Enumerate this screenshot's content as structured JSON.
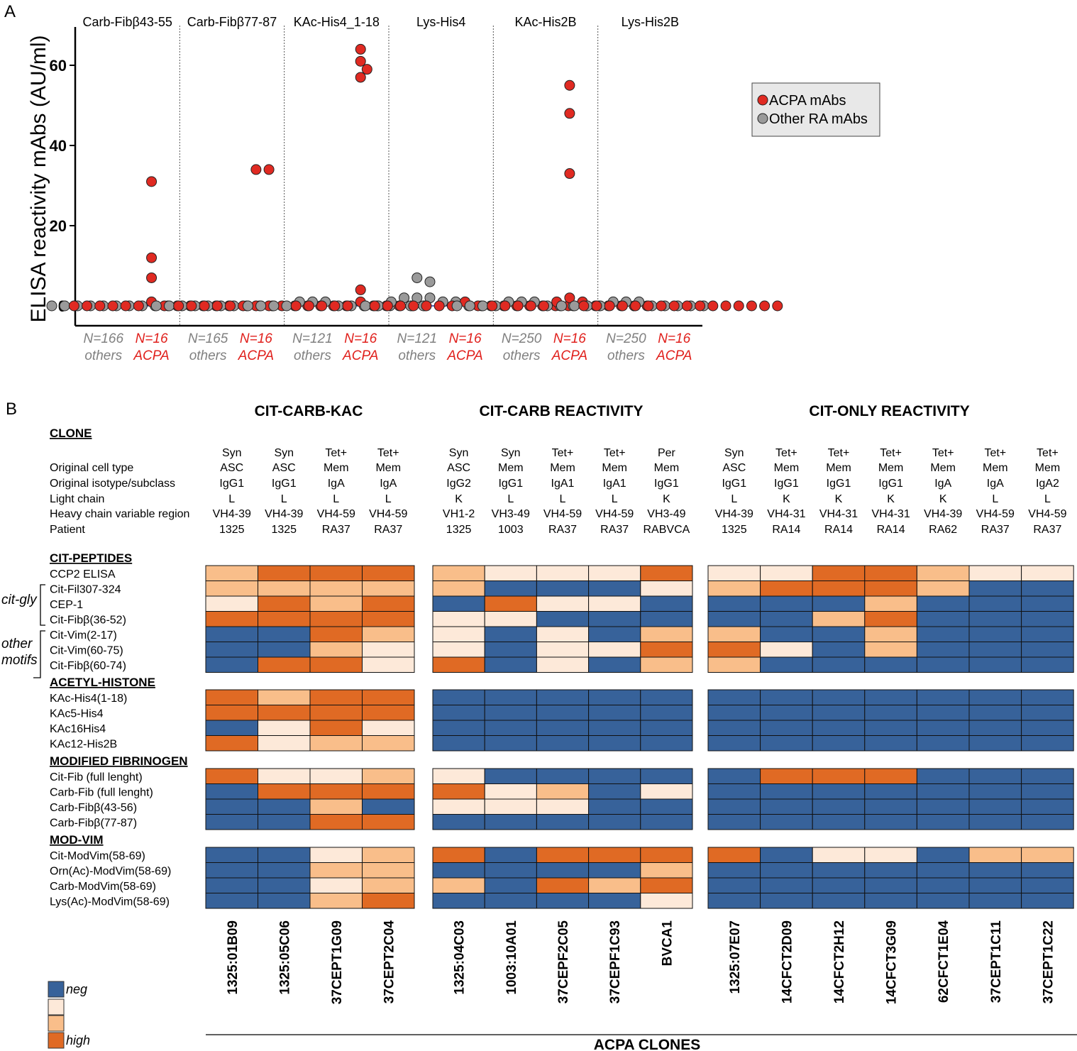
{
  "panel_labels": {
    "a": "A",
    "b": "B"
  },
  "colors": {
    "acpa": "#e02a22",
    "others": "#9a9a9a",
    "baseline": "#2233aa",
    "neg": "#37629a",
    "low": "#fde9d9",
    "mid": "#f9be8a",
    "high": "#e06a24",
    "others_text": "#808080",
    "acpa_text": "#e0201c"
  },
  "chart_data": [
    {
      "type": "scatter",
      "title": "",
      "ylabel": "ELISA reactivity mAbs (AU/ml)",
      "xlabel": "",
      "ylim": [
        -4,
        70
      ],
      "yticks": [
        0,
        20,
        40,
        60
      ],
      "legend": {
        "position": "top-right",
        "entries": [
          "ACPA mAbs",
          "Other RA mAbs"
        ]
      },
      "baseline": 0,
      "groups": [
        {
          "antigen": "Carb-Fibβ43-55",
          "others": {
            "n_label": "N=166",
            "sub_label": "others",
            "points": [
              0,
              0,
              0,
              0,
              0,
              0,
              0,
              0,
              0,
              0
            ]
          },
          "acpa": {
            "n_label": "N=16",
            "sub_label": "ACPA",
            "points": [
              31,
              12,
              7,
              1,
              0,
              0,
              0,
              0,
              0,
              0,
              0,
              0,
              0,
              0,
              0,
              0
            ]
          }
        },
        {
          "antigen": "Carb-Fibβ77-87",
          "others": {
            "n_label": "N=165",
            "sub_label": "others",
            "points": [
              0,
              0,
              0,
              0,
              0,
              0,
              0,
              0,
              0,
              0
            ]
          },
          "acpa": {
            "n_label": "N=16",
            "sub_label": "ACPA",
            "points": [
              34,
              34,
              0,
              0,
              0,
              0,
              0,
              0,
              0,
              0,
              0,
              0,
              0,
              0,
              0,
              0
            ]
          }
        },
        {
          "antigen": "KAc-His4_1-18",
          "others": {
            "n_label": "N=121",
            "sub_label": "others",
            "points": [
              1,
              1,
              1,
              0,
              0,
              0,
              0,
              0,
              0,
              0,
              0,
              0
            ]
          },
          "acpa": {
            "n_label": "N=16",
            "sub_label": "ACPA",
            "points": [
              64,
              61,
              59,
              57,
              4,
              1,
              0,
              0,
              0,
              0,
              0,
              0,
              0,
              0,
              0,
              0
            ]
          }
        },
        {
          "antigen": "Lys-His4",
          "others": {
            "n_label": "N=121",
            "sub_label": "others",
            "points": [
              7,
              6,
              2,
              2,
              2,
              1,
              1,
              1,
              0,
              0,
              0,
              0,
              0,
              0
            ]
          },
          "acpa": {
            "n_label": "N=16",
            "sub_label": "ACPA",
            "points": [
              1,
              0,
              0,
              0,
              0,
              0,
              0,
              0,
              0,
              0,
              0,
              0,
              0,
              0,
              0,
              0
            ]
          }
        },
        {
          "antigen": "KAc-His2B",
          "others": {
            "n_label": "N=250",
            "sub_label": "others",
            "points": [
              1,
              1,
              1,
              0,
              0,
              0,
              0,
              0,
              0,
              0,
              0,
              0
            ]
          },
          "acpa": {
            "n_label": "N=16",
            "sub_label": "ACPA",
            "points": [
              55,
              48,
              33,
              2,
              1,
              1,
              0,
              0,
              0,
              0,
              0,
              0,
              0,
              0,
              0,
              0
            ]
          }
        },
        {
          "antigen": "Lys-His2B",
          "others": {
            "n_label": "N=250",
            "sub_label": "others",
            "points": [
              1,
              1,
              1,
              0,
              0,
              0,
              0,
              0,
              0,
              0,
              0,
              0
            ]
          },
          "acpa": {
            "n_label": "N=16",
            "sub_label": "ACPA",
            "points": [
              0,
              0,
              0,
              0,
              0,
              0,
              0,
              0,
              0,
              0,
              0,
              0,
              0,
              0,
              0,
              0
            ]
          }
        }
      ]
    },
    {
      "type": "heatmap",
      "legend": [
        "neg",
        "",
        "",
        "high"
      ],
      "xlabel": "ACPA CLONES",
      "clone_header": "CLONE",
      "row_labels": {
        "cell_type": "Original cell type",
        "isotype": "Original isotype/subclass",
        "light": "Light chain",
        "vh": "Heavy chain variable region",
        "patient": "Patient"
      },
      "side_groups": [
        {
          "label": [
            "cit-gly"
          ]
        },
        {
          "label": [
            "other",
            "motifs"
          ]
        }
      ],
      "clone_groups": [
        {
          "title": "CIT-CARB-KAC",
          "clones": [
            {
              "id": "1325:01B09",
              "cell_pre": "Syn",
              "cell": "ASC",
              "isotype": "IgG1",
              "light": "L",
              "vh": "VH4-39",
              "patient": "1325"
            },
            {
              "id": "1325:05C06",
              "cell_pre": "Syn",
              "cell": "ASC",
              "isotype": "IgG1",
              "light": "L",
              "vh": "VH4-39",
              "patient": "1325"
            },
            {
              "id": "37CEPT1G09",
              "cell_pre": "Tet+",
              "cell": "Mem",
              "isotype": "IgA",
              "light": "L",
              "vh": "VH4-59",
              "patient": "RA37"
            },
            {
              "id": "37CEPT2C04",
              "cell_pre": "Tet+",
              "cell": "Mem",
              "isotype": "IgA",
              "light": "L",
              "vh": "VH4-59",
              "patient": "RA37"
            }
          ]
        },
        {
          "title": "CIT-CARB REACTIVITY",
          "clones": [
            {
              "id": "1325:04C03",
              "cell_pre": "Syn",
              "cell": "ASC",
              "isotype": "IgG2",
              "light": "K",
              "vh": "VH1-2",
              "patient": "1325"
            },
            {
              "id": "1003:10A01",
              "cell_pre": "Syn",
              "cell": "Mem",
              "isotype": "IgG1",
              "light": "L",
              "vh": "VH3-49",
              "patient": "1003"
            },
            {
              "id": "37CEPF2C05",
              "cell_pre": "Tet+",
              "cell": "Mem",
              "isotype": "IgA1",
              "light": "L",
              "vh": "VH4-59",
              "patient": "RA37"
            },
            {
              "id": "37CEPF1C93",
              "cell_pre": "Tet+",
              "cell": "Mem",
              "isotype": "IgA1",
              "light": "L",
              "vh": "VH4-59",
              "patient": "RA37"
            },
            {
              "id": "BVCA1",
              "cell_pre": "Per",
              "cell": "Mem",
              "isotype": "IgG1",
              "light": "K",
              "vh": "VH3-49",
              "patient": "RABVCA"
            }
          ]
        },
        {
          "title": "CIT-ONLY REACTIVITY",
          "clones": [
            {
              "id": "1325:07E07",
              "cell_pre": "Syn",
              "cell": "ASC",
              "isotype": "IgG1",
              "light": "L",
              "vh": "VH4-39",
              "patient": "1325"
            },
            {
              "id": "14CFCT2D09",
              "cell_pre": "Tet+",
              "cell": "Mem",
              "isotype": "IgG1",
              "light": "K",
              "vh": "VH4-31",
              "patient": "RA14"
            },
            {
              "id": "14CFCT2H12",
              "cell_pre": "Tet+",
              "cell": "Mem",
              "isotype": "IgG1",
              "light": "K",
              "vh": "VH4-31",
              "patient": "RA14"
            },
            {
              "id": "14CFCT3G09",
              "cell_pre": "Tet+",
              "cell": "Mem",
              "isotype": "IgG1",
              "light": "K",
              "vh": "VH4-31",
              "patient": "RA14"
            },
            {
              "id": "62CFCT1E04",
              "cell_pre": "Tet+",
              "cell": "Mem",
              "isotype": "IgA",
              "light": "K",
              "vh": "VH4-39",
              "patient": "RA62"
            },
            {
              "id": "37CEPT1C11",
              "cell_pre": "Tet+",
              "cell": "Mem",
              "isotype": "IgA",
              "light": "L",
              "vh": "VH4-59",
              "patient": "RA37"
            },
            {
              "id": "37CEPT1C22",
              "cell_pre": "Tet+",
              "cell": "Mem",
              "isotype": "IgA2",
              "light": "L",
              "vh": "VH4-59",
              "patient": "RA37"
            }
          ]
        }
      ],
      "sections": [
        {
          "title": "CIT-PEPTIDES",
          "rows": [
            {
              "label": "CCP2 ELISA",
              "values": [
                2,
                3,
                3,
                3,
                2,
                1,
                1,
                1,
                3,
                1,
                1,
                3,
                3,
                2,
                1,
                1
              ]
            },
            {
              "label": "Cit-Fil307-324",
              "values": [
                2,
                2,
                2,
                2,
                2,
                0,
                0,
                0,
                1,
                2,
                3,
                3,
                3,
                2,
                0,
                0
              ]
            },
            {
              "label": "CEP-1",
              "values": [
                1,
                3,
                2,
                3,
                0,
                3,
                1,
                1,
                0,
                0,
                0,
                0,
                2,
                0,
                0,
                0
              ]
            },
            {
              "label": "Cit-Fibβ(36-52)",
              "values": [
                3,
                3,
                3,
                3,
                1,
                1,
                0,
                0,
                0,
                0,
                0,
                2,
                3,
                0,
                0,
                0
              ]
            },
            {
              "label": "Cit-Vim(2-17)",
              "values": [
                0,
                0,
                3,
                2,
                1,
                0,
                1,
                0,
                2,
                2,
                0,
                0,
                2,
                0,
                0,
                0
              ]
            },
            {
              "label": "Cit-Vim(60-75)",
              "values": [
                0,
                0,
                2,
                1,
                1,
                0,
                1,
                1,
                3,
                3,
                1,
                0,
                2,
                0,
                0,
                0
              ]
            },
            {
              "label": "Cit-Fibβ(60-74)",
              "values": [
                0,
                3,
                3,
                1,
                3,
                0,
                1,
                0,
                2,
                2,
                0,
                0,
                0,
                0,
                0,
                0
              ]
            }
          ]
        },
        {
          "title": "ACETYL-HISTONE",
          "rows": [
            {
              "label": "KAc-His4(1-18)",
              "values": [
                3,
                2,
                3,
                3,
                0,
                0,
                0,
                0,
                0,
                0,
                0,
                0,
                0,
                0,
                0,
                0
              ]
            },
            {
              "label": "KAc5-His4",
              "values": [
                3,
                3,
                3,
                3,
                0,
                0,
                0,
                0,
                0,
                0,
                0,
                0,
                0,
                0,
                0,
                0
              ]
            },
            {
              "label": "KAc16His4",
              "values": [
                0,
                1,
                3,
                1,
                0,
                0,
                0,
                0,
                0,
                0,
                0,
                0,
                0,
                0,
                0,
                0
              ]
            },
            {
              "label": "KAc12-His2B",
              "values": [
                3,
                1,
                2,
                2,
                0,
                0,
                0,
                0,
                0,
                0,
                0,
                0,
                0,
                0,
                0,
                0
              ]
            }
          ]
        },
        {
          "title": "MODIFIED FIBRINOGEN",
          "rows": [
            {
              "label": "Cit-Fib (full lenght)",
              "values": [
                3,
                1,
                1,
                2,
                1,
                0,
                0,
                0,
                0,
                0,
                3,
                3,
                3,
                0,
                0,
                0
              ]
            },
            {
              "label": "Carb-Fib (full lenght)",
              "values": [
                0,
                3,
                3,
                3,
                3,
                1,
                2,
                0,
                1,
                0,
                0,
                0,
                0,
                0,
                0,
                0
              ]
            },
            {
              "label": "Carb-Fibβ(43-56)",
              "values": [
                0,
                0,
                2,
                0,
                1,
                1,
                1,
                0,
                0,
                0,
                0,
                0,
                0,
                0,
                0,
                0
              ]
            },
            {
              "label": "Carb-Fibβ(77-87)",
              "values": [
                0,
                0,
                3,
                3,
                0,
                0,
                0,
                0,
                0,
                0,
                0,
                0,
                0,
                0,
                0,
                0
              ]
            }
          ]
        },
        {
          "title": "MOD-VIM",
          "rows": [
            {
              "label": "Cit-ModVim(58-69)",
              "values": [
                0,
                0,
                1,
                2,
                3,
                0,
                3,
                3,
                3,
                3,
                0,
                1,
                1,
                0,
                2,
                2
              ]
            },
            {
              "label": "Orn(Ac)-ModVim(58-69)",
              "values": [
                0,
                0,
                2,
                2,
                0,
                0,
                0,
                0,
                2,
                0,
                0,
                0,
                0,
                0,
                0,
                0
              ]
            },
            {
              "label": "Carb-ModVim(58-69)",
              "values": [
                0,
                0,
                1,
                2,
                2,
                0,
                3,
                2,
                3,
                0,
                0,
                0,
                0,
                0,
                0,
                0
              ]
            },
            {
              "label": "Lys(Ac)-ModVim(58-69)",
              "values": [
                0,
                0,
                2,
                3,
                0,
                0,
                0,
                0,
                1,
                0,
                0,
                0,
                0,
                0,
                0,
                0
              ]
            }
          ]
        }
      ]
    }
  ]
}
